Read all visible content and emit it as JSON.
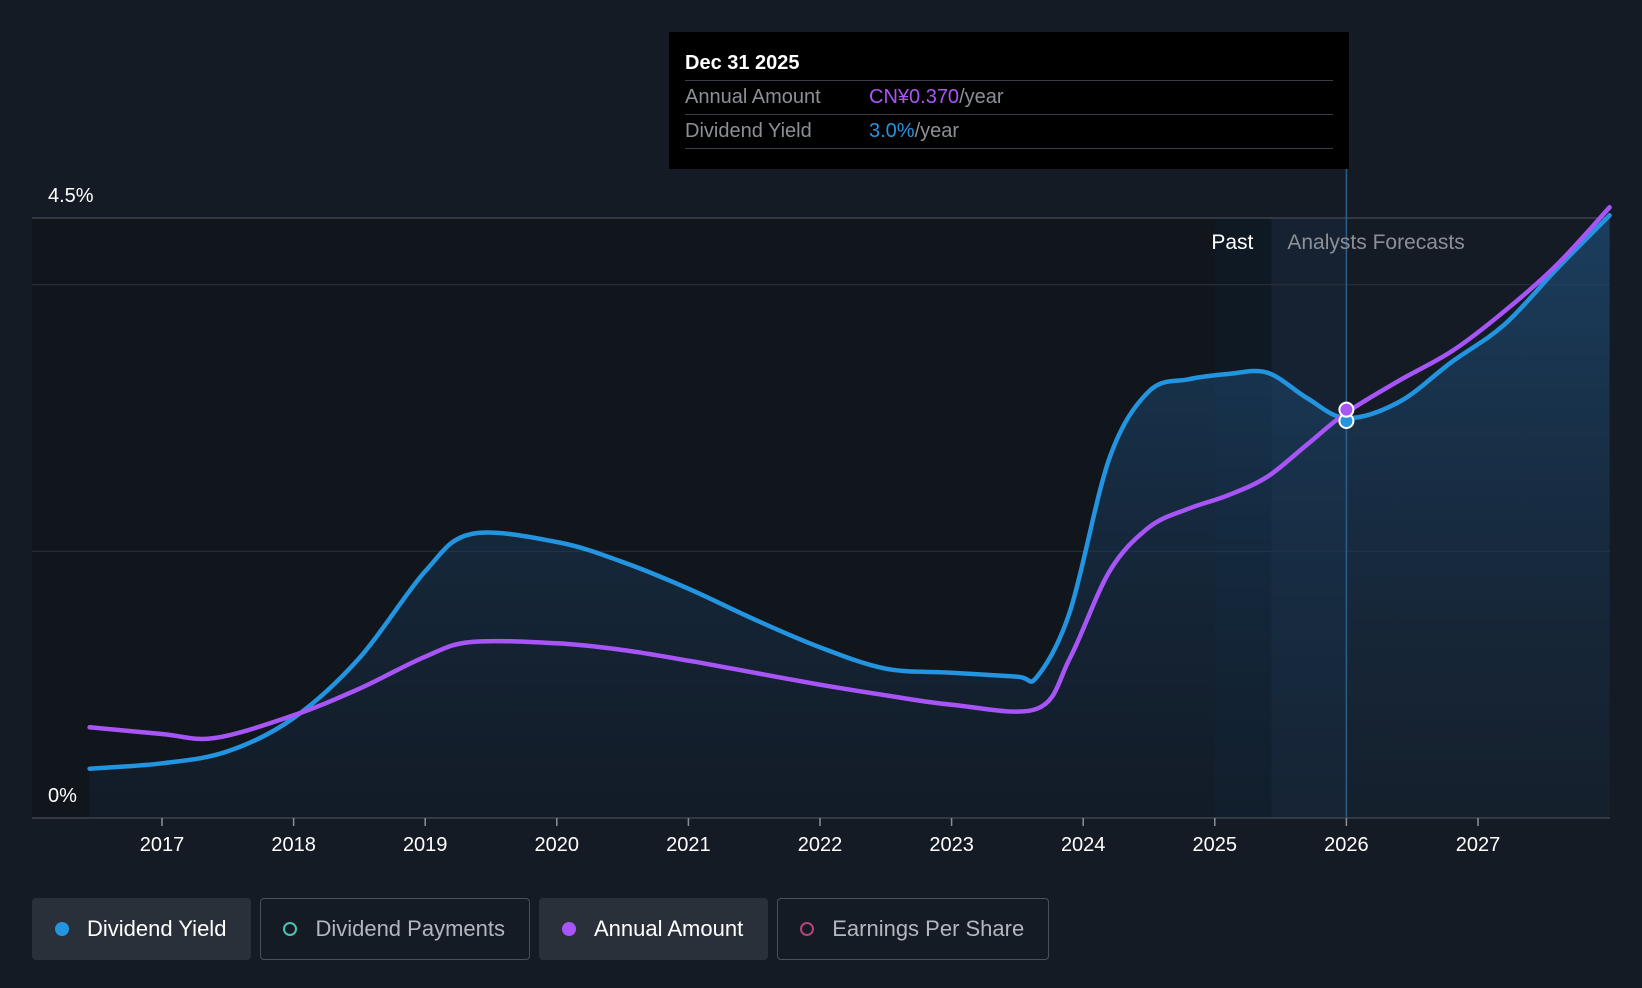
{
  "colors": {
    "background": "#151b24",
    "yield": "#2394df",
    "annual_amount": "#a855f7",
    "dividend_payments": "#4fc1b0",
    "eps": "#b1457a",
    "forecast_shade": "#1b2e44"
  },
  "tooltip": {
    "date": "Dec 31 2025",
    "rows": [
      {
        "label": "Annual Amount",
        "value": "CN¥0.370",
        "unit": "/year",
        "color": "#a855f7"
      },
      {
        "label": "Dividend Yield",
        "value": "3.0%",
        "unit": "/year",
        "color": "#2394df"
      }
    ]
  },
  "legend": [
    {
      "label": "Dividend Yield",
      "icon": "filled-dot",
      "color": "#2394df",
      "active": true
    },
    {
      "label": "Dividend Payments",
      "icon": "hollow-dot",
      "color": "#4fc1b0",
      "active": false
    },
    {
      "label": "Annual Amount",
      "icon": "filled-dot",
      "color": "#a855f7",
      "active": true
    },
    {
      "label": "Earnings Per Share",
      "icon": "hollow-dot",
      "color": "#b1457a",
      "active": false
    }
  ],
  "chart_data": {
    "type": "line",
    "ylim": [
      0,
      4.5
    ],
    "y_tick_labels": [
      {
        "value": 4.5,
        "label": "4.5%"
      },
      {
        "value": 0,
        "label": "0%"
      }
    ],
    "y_gridlines": [
      4.0,
      2.0
    ],
    "x_ticks": [
      2017,
      2018,
      2019,
      2020,
      2021,
      2022,
      2023,
      2024,
      2025,
      2026,
      2027
    ],
    "xlim": [
      2016.5,
      2028
    ],
    "past_label": "Past",
    "forecast_label": "Analysts Forecasts",
    "past_region": [
      2025,
      2025.43
    ],
    "forecast_start": 2026,
    "series": [
      {
        "name": "Dividend Yield",
        "color": "#2394df",
        "fill": true,
        "points": [
          [
            2016.45,
            0.37
          ],
          [
            2017.0,
            0.41
          ],
          [
            2017.5,
            0.5
          ],
          [
            2018.0,
            0.75
          ],
          [
            2018.5,
            1.2
          ],
          [
            2019.0,
            1.85
          ],
          [
            2019.35,
            2.13
          ],
          [
            2020.0,
            2.07
          ],
          [
            2020.5,
            1.92
          ],
          [
            2021.0,
            1.72
          ],
          [
            2021.5,
            1.49
          ],
          [
            2022.0,
            1.28
          ],
          [
            2022.5,
            1.12
          ],
          [
            2023.0,
            1.09
          ],
          [
            2023.5,
            1.06
          ],
          [
            2023.65,
            1.06
          ],
          [
            2023.9,
            1.55
          ],
          [
            2024.2,
            2.7
          ],
          [
            2024.5,
            3.2
          ],
          [
            2024.8,
            3.29
          ],
          [
            2025.1,
            3.33
          ],
          [
            2025.4,
            3.34
          ],
          [
            2025.7,
            3.15
          ],
          [
            2026.0,
            3.0
          ],
          [
            2026.4,
            3.12
          ],
          [
            2026.8,
            3.42
          ],
          [
            2027.2,
            3.7
          ],
          [
            2027.6,
            4.12
          ],
          [
            2028.0,
            4.52
          ]
        ]
      },
      {
        "name": "Annual Amount",
        "color": "#a855f7",
        "fill": false,
        "points": [
          [
            2016.45,
            0.68
          ],
          [
            2017.0,
            0.63
          ],
          [
            2017.4,
            0.6
          ],
          [
            2018.0,
            0.77
          ],
          [
            2018.5,
            0.97
          ],
          [
            2019.0,
            1.21
          ],
          [
            2019.35,
            1.32
          ],
          [
            2020.0,
            1.31
          ],
          [
            2020.5,
            1.26
          ],
          [
            2021.0,
            1.18
          ],
          [
            2021.5,
            1.09
          ],
          [
            2022.0,
            1.0
          ],
          [
            2022.5,
            0.92
          ],
          [
            2023.0,
            0.85
          ],
          [
            2023.65,
            0.82
          ],
          [
            2023.9,
            1.2
          ],
          [
            2024.2,
            1.85
          ],
          [
            2024.5,
            2.18
          ],
          [
            2024.8,
            2.32
          ],
          [
            2025.1,
            2.42
          ],
          [
            2025.4,
            2.56
          ],
          [
            2025.7,
            2.8
          ],
          [
            2026.0,
            3.04
          ],
          [
            2026.4,
            3.28
          ],
          [
            2026.8,
            3.5
          ],
          [
            2027.2,
            3.8
          ],
          [
            2027.6,
            4.15
          ],
          [
            2028.0,
            4.58
          ]
        ]
      }
    ]
  }
}
